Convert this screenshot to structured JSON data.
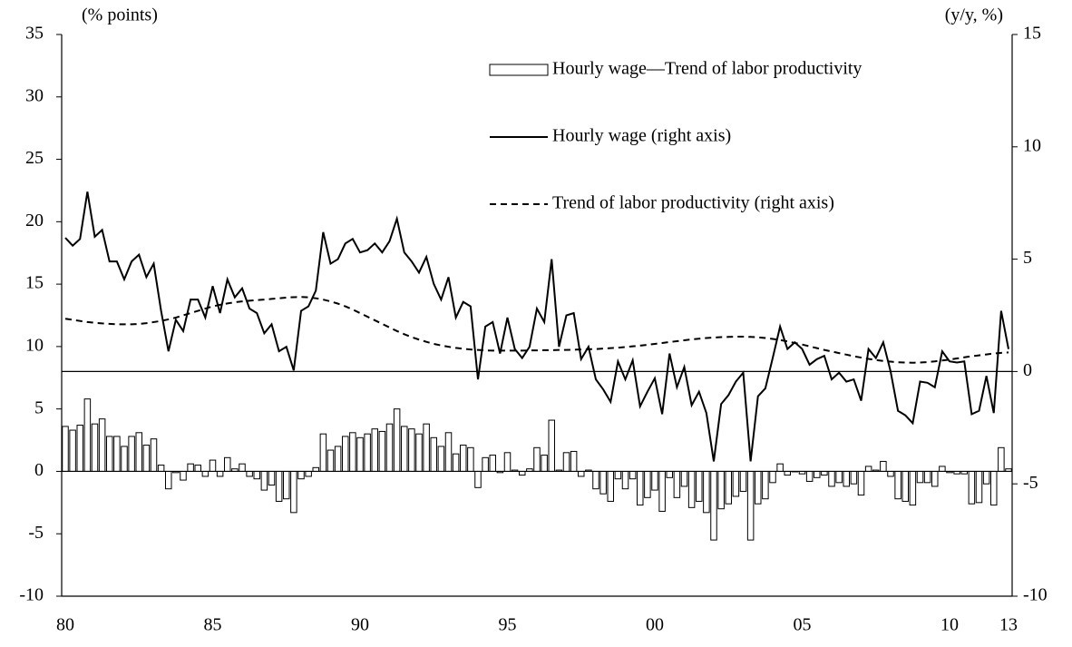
{
  "chart_data": {
    "type": "bar",
    "ylabel": "(% points)",
    "y2label": "(y/y, %)",
    "categories": [
      "80",
      null,
      null,
      null,
      null,
      null,
      null,
      null,
      null,
      null,
      null,
      null,
      null,
      null,
      null,
      null,
      null,
      null,
      null,
      null,
      "85",
      null,
      null,
      null,
      null,
      null,
      null,
      null,
      null,
      null,
      null,
      null,
      null,
      null,
      null,
      null,
      null,
      null,
      null,
      null,
      "90",
      null,
      null,
      null,
      null,
      null,
      null,
      null,
      null,
      null,
      null,
      null,
      null,
      null,
      null,
      null,
      null,
      null,
      null,
      null,
      "95",
      null,
      null,
      null,
      null,
      null,
      null,
      null,
      null,
      null,
      null,
      null,
      null,
      null,
      null,
      null,
      null,
      null,
      null,
      null,
      "00",
      null,
      null,
      null,
      null,
      null,
      null,
      null,
      null,
      null,
      null,
      null,
      null,
      null,
      null,
      null,
      null,
      null,
      null,
      null,
      "05",
      null,
      null,
      null,
      null,
      null,
      null,
      null,
      null,
      null,
      null,
      null,
      null,
      null,
      null,
      null,
      null,
      null,
      null,
      null,
      "10",
      null,
      null,
      null,
      null,
      null,
      null,
      null,
      "13"
    ],
    "series": [
      {
        "name": "Hourly wage—Trend of labor productivity",
        "type": "bar",
        "axis": "y",
        "color": "#ffffff",
        "values": [
          3.6,
          3.3,
          3.7,
          5.8,
          3.8,
          4.2,
          2.8,
          2.8,
          2.0,
          2.8,
          3.1,
          2.1,
          2.6,
          0.5,
          -1.4,
          -0.1,
          -0.7,
          0.6,
          0.5,
          -0.4,
          0.9,
          -0.4,
          1.1,
          0.2,
          0.6,
          -0.4,
          -0.6,
          -1.5,
          -1.1,
          -2.4,
          -2.2,
          -3.3,
          -0.6,
          -0.4,
          0.3,
          3.0,
          1.7,
          2.0,
          2.8,
          3.1,
          2.7,
          3.0,
          3.4,
          3.2,
          3.8,
          5.0,
          3.6,
          3.4,
          3.0,
          3.8,
          2.7,
          2.0,
          3.1,
          1.4,
          2.1,
          1.9,
          -1.3,
          1.1,
          1.3,
          -0.1,
          1.5,
          0.1,
          -0.3,
          0.2,
          1.9,
          1.3,
          4.1,
          0.1,
          1.5,
          1.6,
          -0.4,
          0.1,
          -1.4,
          -1.8,
          -2.4,
          -0.6,
          -1.4,
          -0.6,
          -2.7,
          -2.1,
          -1.5,
          -3.2,
          -0.5,
          -2.1,
          -1.2,
          -2.9,
          -2.4,
          -3.3,
          -5.5,
          -3.0,
          -2.6,
          -2.0,
          -1.6,
          -5.5,
          -2.6,
          -2.2,
          -0.9,
          0.6,
          -0.3,
          0.0,
          -0.2,
          -0.8,
          -0.5,
          -0.3,
          -1.2,
          -0.9,
          -1.2,
          -1.0,
          -1.9,
          0.4,
          0.1,
          0.8,
          -0.4,
          -2.2,
          -2.4,
          -2.7,
          -0.9,
          -0.9,
          -1.2,
          0.4,
          -0.1,
          -0.2,
          -0.2,
          -2.6,
          -2.5,
          -1.0,
          -2.7,
          1.9,
          0.2
        ]
      },
      {
        "name": "Hourly wage (right axis)",
        "type": "line",
        "axis": "y2",
        "color": "#000000",
        "style": "solid",
        "values": [
          5.95,
          5.6,
          5.9,
          8.0,
          6.0,
          6.3,
          4.9,
          4.9,
          4.1,
          4.9,
          5.2,
          4.2,
          4.8,
          2.7,
          0.9,
          2.3,
          1.8,
          3.2,
          3.2,
          2.4,
          3.8,
          2.6,
          4.1,
          3.3,
          3.7,
          2.8,
          2.6,
          1.7,
          2.1,
          0.9,
          1.1,
          0.05,
          2.7,
          2.9,
          3.6,
          6.2,
          4.8,
          5.0,
          5.7,
          5.9,
          5.3,
          5.4,
          5.7,
          5.3,
          5.8,
          6.8,
          5.3,
          4.9,
          4.4,
          5.1,
          3.9,
          3.2,
          4.2,
          2.4,
          3.1,
          2.9,
          -0.35,
          2.0,
          2.2,
          0.8,
          2.4,
          1.0,
          0.6,
          1.1,
          2.8,
          2.2,
          5.0,
          1.1,
          2.5,
          2.6,
          0.55,
          1.1,
          -0.35,
          -0.8,
          -1.35,
          0.45,
          -0.35,
          0.5,
          -1.55,
          -0.9,
          -0.3,
          -1.9,
          0.8,
          -0.7,
          0.2,
          -1.5,
          -0.9,
          -1.85,
          -4.0,
          -1.45,
          -1.05,
          -0.45,
          -0.05,
          -4.0,
          -1.1,
          -0.75,
          0.6,
          2.0,
          1.0,
          1.3,
          1.0,
          0.3,
          0.55,
          0.7,
          -0.35,
          -0.05,
          -0.45,
          -0.35,
          -1.3,
          1.0,
          0.6,
          1.3,
          0,
          -1.75,
          -1.95,
          -2.3,
          -0.45,
          -0.5,
          -0.7,
          0.9,
          0.45,
          0.4,
          0.45,
          -1.9,
          -1.75,
          -0.2,
          -1.85,
          2.7,
          1.0
        ]
      },
      {
        "name": "Trend of labor productivity (right axis)",
        "type": "line",
        "axis": "y2",
        "color": "#000000",
        "style": "dashed",
        "values": [
          2.35,
          2.3,
          2.25,
          2.2,
          2.17,
          2.14,
          2.12,
          2.1,
          2.1,
          2.1,
          2.12,
          2.15,
          2.2,
          2.25,
          2.32,
          2.4,
          2.5,
          2.6,
          2.7,
          2.8,
          2.9,
          2.97,
          3.03,
          3.08,
          3.12,
          3.15,
          3.18,
          3.2,
          3.23,
          3.26,
          3.29,
          3.31,
          3.32,
          3.3,
          3.26,
          3.2,
          3.12,
          3.02,
          2.9,
          2.76,
          2.6,
          2.44,
          2.28,
          2.12,
          1.96,
          1.8,
          1.66,
          1.53,
          1.42,
          1.32,
          1.23,
          1.16,
          1.1,
          1.05,
          1.01,
          0.98,
          0.96,
          0.94,
          0.93,
          0.93,
          0.93,
          0.93,
          0.93,
          0.94,
          0.94,
          0.95,
          0.95,
          0.96,
          0.96,
          0.97,
          0.98,
          0.99,
          1.0,
          1.02,
          1.04,
          1.06,
          1.09,
          1.12,
          1.15,
          1.19,
          1.23,
          1.27,
          1.31,
          1.35,
          1.39,
          1.43,
          1.46,
          1.49,
          1.51,
          1.53,
          1.54,
          1.55,
          1.55,
          1.54,
          1.52,
          1.49,
          1.45,
          1.4,
          1.34,
          1.27,
          1.2,
          1.12,
          1.04,
          0.96,
          0.89,
          0.82,
          0.75,
          0.68,
          0.62,
          0.56,
          0.51,
          0.47,
          0.44,
          0.41,
          0.4,
          0.39,
          0.4,
          0.42,
          0.45,
          0.49,
          0.53,
          0.58,
          0.63,
          0.68,
          0.72,
          0.76,
          0.8,
          0.83,
          0.85
        ]
      }
    ],
    "ylim": [
      -10,
      35
    ],
    "yticks": [
      -10,
      -5,
      0,
      5,
      10,
      15,
      20,
      25,
      30,
      35
    ],
    "y2lim": [
      -10,
      15
    ],
    "y2ticks": [
      -10,
      -5,
      0,
      5,
      10,
      15
    ],
    "grid": false,
    "legend": "upper right"
  }
}
